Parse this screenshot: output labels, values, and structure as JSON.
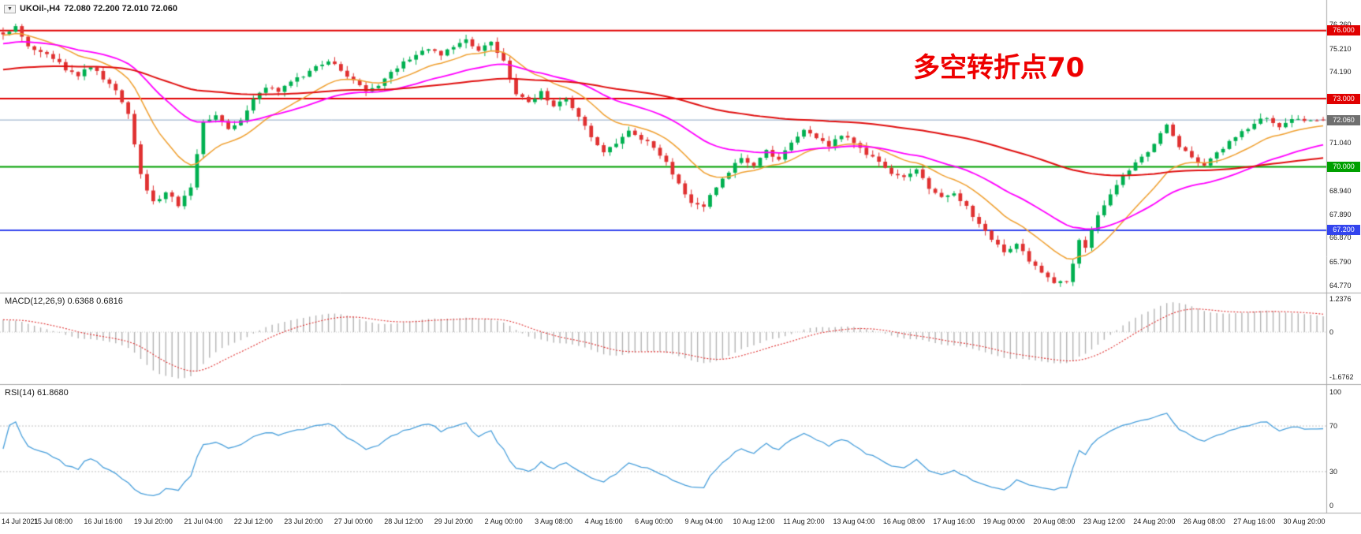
{
  "window": {
    "dropdown_icon": "▼",
    "title_symbol": "UKOil-,H4",
    "title_ohlc": "72.080 72.200 72.010 72.060"
  },
  "annotation": {
    "text": "多空转折点70",
    "color": "#ee0000"
  },
  "indicators": {
    "macd": {
      "label": "MACD(12,26,9) 0.6368 0.6816"
    },
    "rsi": {
      "label": "RSI(14) 61.8680"
    }
  },
  "chart_data": {
    "type": "candlestick",
    "symbol": "UKOil-",
    "timeframe": "H4",
    "title": "UKOil-,H4",
    "current": {
      "open": 72.08,
      "high": 72.2,
      "low": 72.01,
      "close": 72.06
    },
    "bars": 212,
    "label_every": 8,
    "grid": "off",
    "candle_colors": {
      "up": "#00b050",
      "down": "#e03131"
    },
    "price_axis": {
      "domain": [
        64.45,
        77.35
      ],
      "ticks": [
        {
          "t": "76.260",
          "v": 76.26
        },
        {
          "t": "75.210",
          "v": 75.21
        },
        {
          "t": "74.190",
          "v": 74.19
        },
        {
          "t": "71.040",
          "v": 71.04
        },
        {
          "t": "68.940",
          "v": 68.94
        },
        {
          "t": "67.890",
          "v": 67.89
        },
        {
          "t": "66.870",
          "v": 66.87
        },
        {
          "t": "65.790",
          "v": 65.79
        },
        {
          "t": "64.770",
          "v": 64.77
        }
      ],
      "tags": [
        {
          "t": "76.000",
          "v": 76.0,
          "bg": "#e00000"
        },
        {
          "t": "73.000",
          "v": 73.0,
          "bg": "#e00000"
        },
        {
          "t": "72.060",
          "v": 72.06,
          "bg": "#6f6f6f"
        },
        {
          "t": "70.000",
          "v": 70.0,
          "bg": "#00a000"
        },
        {
          "t": "67.200",
          "v": 67.2,
          "bg": "#3344ee"
        }
      ]
    },
    "levels": [
      {
        "v": 76.0,
        "c": "#e00000",
        "w": 2
      },
      {
        "v": 73.0,
        "c": "#e00000",
        "w": 2
      },
      {
        "v": 72.06,
        "c": "#8ea8c3",
        "w": 1
      },
      {
        "v": 70.0,
        "c": "#00a000",
        "w": 2
      },
      {
        "v": 67.2,
        "c": "#3344ee",
        "w": 2
      }
    ],
    "moving_averages": [
      {
        "period": 14,
        "color": "#f0a030",
        "width": 1.5,
        "seed": 75.8
      },
      {
        "period": 34,
        "color": "#ff00ff",
        "width": 1.8,
        "seed": 75.4
      },
      {
        "period": 110,
        "color": "#e01010",
        "width": 2,
        "seed": 74.25
      }
    ],
    "price_path": [
      [
        0,
        75.9
      ],
      [
        2,
        76.15
      ],
      [
        4,
        75.3
      ],
      [
        6,
        75.0
      ],
      [
        8,
        74.8
      ],
      [
        10,
        74.3
      ],
      [
        12,
        74.0
      ],
      [
        14,
        74.45
      ],
      [
        16,
        73.9
      ],
      [
        18,
        73.4
      ],
      [
        20,
        72.3
      ],
      [
        22,
        69.6
      ],
      [
        24,
        68.4
      ],
      [
        26,
        68.9
      ],
      [
        28,
        68.3
      ],
      [
        30,
        69.1
      ],
      [
        31,
        70.6
      ],
      [
        32,
        71.9
      ],
      [
        34,
        72.2
      ],
      [
        36,
        71.7
      ],
      [
        38,
        72.0
      ],
      [
        40,
        73.0
      ],
      [
        42,
        73.5
      ],
      [
        44,
        73.3
      ],
      [
        46,
        73.8
      ],
      [
        48,
        74.0
      ],
      [
        50,
        74.4
      ],
      [
        52,
        74.6
      ],
      [
        54,
        74.3
      ],
      [
        56,
        73.8
      ],
      [
        58,
        73.3
      ],
      [
        60,
        73.6
      ],
      [
        62,
        74.2
      ],
      [
        64,
        74.6
      ],
      [
        66,
        74.9
      ],
      [
        68,
        75.2
      ],
      [
        70,
        74.9
      ],
      [
        72,
        75.3
      ],
      [
        74,
        75.6
      ],
      [
        76,
        75.1
      ],
      [
        78,
        75.5
      ],
      [
        80,
        74.6
      ],
      [
        82,
        73.2
      ],
      [
        84,
        72.8
      ],
      [
        86,
        73.3
      ],
      [
        88,
        72.6
      ],
      [
        90,
        73.0
      ],
      [
        92,
        72.2
      ],
      [
        94,
        71.3
      ],
      [
        96,
        70.6
      ],
      [
        98,
        71.0
      ],
      [
        100,
        71.6
      ],
      [
        102,
        71.2
      ],
      [
        104,
        70.9
      ],
      [
        106,
        70.2
      ],
      [
        108,
        69.2
      ],
      [
        110,
        68.4
      ],
      [
        112,
        68.3
      ],
      [
        114,
        69.1
      ],
      [
        116,
        69.8
      ],
      [
        118,
        70.4
      ],
      [
        120,
        70.1
      ],
      [
        122,
        70.7
      ],
      [
        124,
        70.3
      ],
      [
        126,
        71.0
      ],
      [
        128,
        71.6
      ],
      [
        130,
        71.3
      ],
      [
        132,
        70.9
      ],
      [
        134,
        71.4
      ],
      [
        136,
        71.1
      ],
      [
        138,
        70.6
      ],
      [
        140,
        70.2
      ],
      [
        142,
        69.7
      ],
      [
        144,
        69.5
      ],
      [
        146,
        69.9
      ],
      [
        148,
        69.1
      ],
      [
        150,
        68.7
      ],
      [
        152,
        68.9
      ],
      [
        154,
        68.2
      ],
      [
        156,
        67.5
      ],
      [
        158,
        66.8
      ],
      [
        160,
        66.3
      ],
      [
        162,
        66.6
      ],
      [
        164,
        65.9
      ],
      [
        166,
        65.3
      ],
      [
        168,
        64.95
      ],
      [
        170,
        64.85
      ],
      [
        171,
        65.7
      ],
      [
        172,
        66.8
      ],
      [
        173,
        66.4
      ],
      [
        174,
        67.3
      ],
      [
        176,
        68.3
      ],
      [
        178,
        69.2
      ],
      [
        180,
        69.9
      ],
      [
        182,
        70.4
      ],
      [
        184,
        71.0
      ],
      [
        186,
        71.9
      ],
      [
        188,
        70.9
      ],
      [
        190,
        70.4
      ],
      [
        192,
        70.1
      ],
      [
        194,
        70.6
      ],
      [
        196,
        71.1
      ],
      [
        198,
        71.5
      ],
      [
        200,
        71.9
      ],
      [
        202,
        72.2
      ],
      [
        204,
        71.8
      ],
      [
        206,
        72.1
      ],
      [
        208,
        72.0
      ],
      [
        211,
        72.06
      ]
    ],
    "time_axis": [
      "14 Jul 2021",
      "15 Jul 08:00",
      "16 Jul 16:00",
      "19 Jul 20:00",
      "21 Jul 04:00",
      "22 Jul 12:00",
      "23 Jul 20:00",
      "27 Jul 00:00",
      "28 Jul 12:00",
      "29 Jul 20:00",
      "2 Aug 00:00",
      "3 Aug 08:00",
      "4 Aug 16:00",
      "6 Aug 00:00",
      "9 Aug 04:00",
      "10 Aug 12:00",
      "11 Aug 20:00",
      "13 Aug 04:00",
      "16 Aug 08:00",
      "17 Aug 16:00",
      "19 Aug 00:00",
      "20 Aug 08:00",
      "23 Aug 12:00",
      "24 Aug 20:00",
      "26 Aug 08:00",
      "27 Aug 16:00",
      "30 Aug 20:00"
    ],
    "macd": {
      "params": [
        12,
        26,
        9
      ],
      "value_main": 0.6368,
      "value_signal": 0.6816,
      "domain": [
        -1.95,
        1.45
      ],
      "axis": [
        {
          "t": "1.2376",
          "v": 1.2376
        },
        {
          "t": "0",
          "v": 0
        },
        {
          "t": "-1.6762",
          "v": -1.6762
        }
      ],
      "hist_color": "#b4b4b4",
      "signal_color": "#e03030"
    },
    "rsi": {
      "period": 14,
      "value": 61.868,
      "domain": [
        -6,
        106
      ],
      "axis": [
        {
          "t": "100",
          "v": 100
        },
        {
          "t": "70",
          "v": 70
        },
        {
          "t": "30",
          "v": 30
        },
        {
          "t": "0",
          "v": 0
        }
      ],
      "levels": [
        70,
        30
      ],
      "color": "#4aa0dc"
    }
  }
}
